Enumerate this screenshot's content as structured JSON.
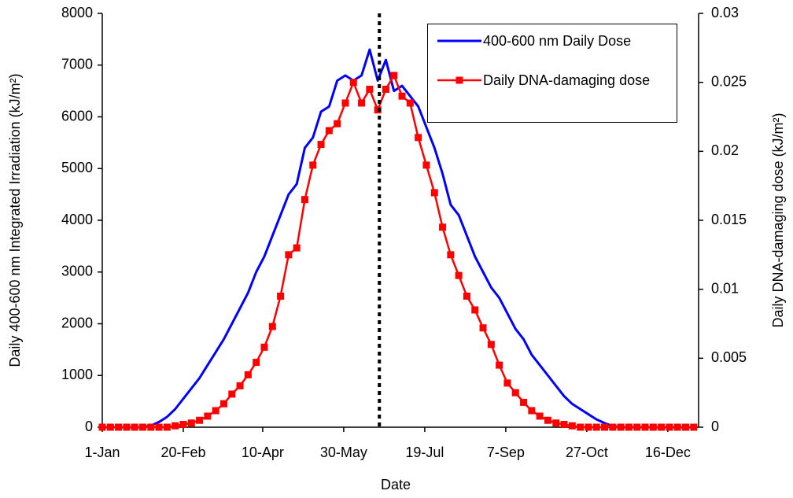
{
  "chart_data": {
    "type": "line",
    "xlabel": "Date",
    "ylabel": "Daily 400-600 nm Integrated Irradiation (kJ/m²)",
    "y2label": "Daily DNA-damaging dose (kJ/m²)",
    "x": [
      0,
      5,
      10,
      15,
      20,
      25,
      30,
      35,
      40,
      45,
      50,
      55,
      60,
      65,
      70,
      75,
      80,
      85,
      90,
      95,
      100,
      105,
      110,
      115,
      120,
      125,
      130,
      135,
      140,
      145,
      150,
      155,
      160,
      165,
      170,
      175,
      180,
      185,
      190,
      195,
      200,
      205,
      210,
      215,
      220,
      225,
      230,
      235,
      240,
      245,
      250,
      255,
      260,
      265,
      270,
      275,
      280,
      285,
      290,
      295,
      300,
      305,
      310,
      315,
      320,
      325,
      330,
      335,
      340,
      345,
      350,
      355,
      360,
      365
    ],
    "xlim": [
      0,
      368
    ],
    "xticks": [
      {
        "value": 0,
        "label": "1-Jan"
      },
      {
        "value": 50,
        "label": "20-Feb"
      },
      {
        "value": 99,
        "label": "10-Apr"
      },
      {
        "value": 149,
        "label": "30-May"
      },
      {
        "value": 199,
        "label": "19-Jul"
      },
      {
        "value": 249,
        "label": "7-Sep"
      },
      {
        "value": 299,
        "label": "27-Oct"
      },
      {
        "value": 349,
        "label": "16-Dec"
      }
    ],
    "ylim": [
      0,
      8000
    ],
    "yticks": [
      0,
      1000,
      2000,
      3000,
      4000,
      5000,
      6000,
      7000,
      8000
    ],
    "y2lim": [
      0,
      0.03
    ],
    "y2ticks": [
      0,
      0.005,
      0.01,
      0.015,
      0.02,
      0.025,
      0.03
    ],
    "vline_x": 171,
    "legend": "upper right",
    "series": [
      {
        "name": "400-600 nm Daily Dose",
        "color": "#0000ff",
        "axis": "y",
        "values": [
          0,
          0,
          0,
          0,
          0,
          0,
          30,
          100,
          200,
          350,
          550,
          750,
          950,
          1200,
          1450,
          1700,
          2000,
          2300,
          2600,
          3000,
          3300,
          3700,
          4100,
          4500,
          4700,
          5400,
          5600,
          6100,
          6200,
          6700,
          6800,
          6700,
          6800,
          7300,
          6700,
          7100,
          6500,
          6600,
          6400,
          6200,
          5800,
          5400,
          4900,
          4300,
          4100,
          3700,
          3300,
          3000,
          2700,
          2500,
          2200,
          1900,
          1700,
          1400,
          1200,
          1000,
          800,
          600,
          450,
          350,
          250,
          150,
          80,
          20,
          0,
          0,
          0,
          0,
          0,
          0,
          0,
          0,
          0,
          0
        ]
      },
      {
        "name": "Daily DNA-damaging dose",
        "color": "#ff0000",
        "axis": "y2",
        "values": [
          0,
          0,
          0,
          0,
          0,
          0,
          0,
          0,
          0,
          0.0001,
          0.0002,
          0.0003,
          0.0005,
          0.0008,
          0.0012,
          0.0017,
          0.0024,
          0.003,
          0.0038,
          0.0047,
          0.0058,
          0.0073,
          0.0095,
          0.0125,
          0.013,
          0.0165,
          0.019,
          0.0205,
          0.0215,
          0.022,
          0.0235,
          0.025,
          0.0235,
          0.0245,
          0.023,
          0.0245,
          0.0255,
          0.024,
          0.0235,
          0.021,
          0.019,
          0.017,
          0.0145,
          0.0125,
          0.011,
          0.0095,
          0.0085,
          0.0072,
          0.006,
          0.0045,
          0.0032,
          0.0025,
          0.0018,
          0.0012,
          0.0008,
          0.0005,
          0.0003,
          0.0002,
          0.0001,
          0,
          0,
          0,
          0,
          0,
          0,
          0,
          0,
          0,
          0,
          0,
          0,
          0,
          0,
          0
        ]
      }
    ]
  }
}
